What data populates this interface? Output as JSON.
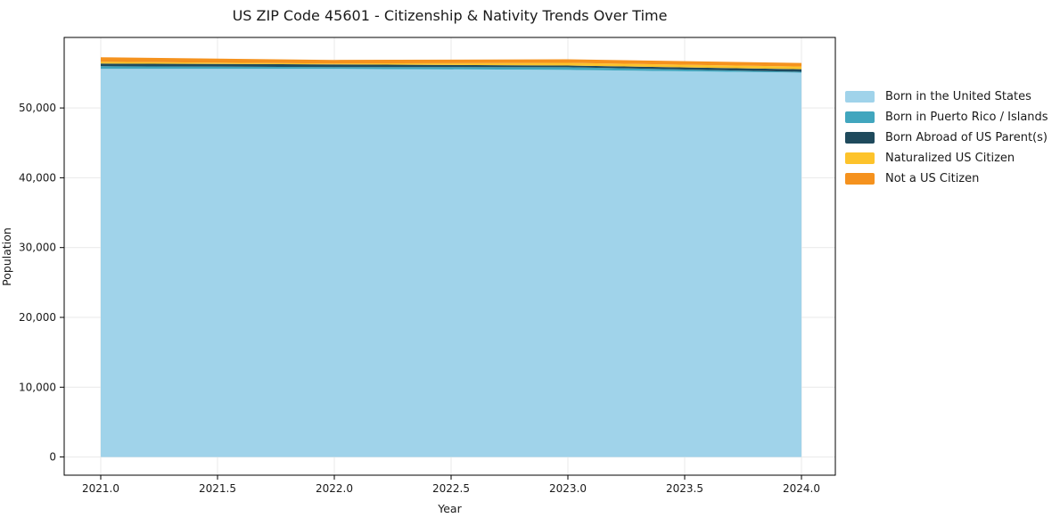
{
  "page": {
    "background": "#ffffff"
  },
  "chart_data": {
    "type": "area",
    "stacked": true,
    "title": "US ZIP Code 45601 - Citizenship & Nativity Trends Over Time",
    "xlabel": "Year",
    "ylabel": "Population",
    "x": [
      2021,
      2022,
      2023,
      2024
    ],
    "series": [
      {
        "name": "Born in the United States",
        "color": "#a0d3ea",
        "values": [
          55600,
          55600,
          55450,
          55050
        ]
      },
      {
        "name": "Born in Puerto Rico / Islands",
        "color": "#41a6be",
        "values": [
          380,
          260,
          380,
          130
        ]
      },
      {
        "name": "Born Abroad of US Parent(s)",
        "color": "#1f4a5c",
        "values": [
          380,
          380,
          250,
          380
        ]
      },
      {
        "name": "Naturalized US Citizen",
        "color": "#fdc32b",
        "values": [
          260,
          130,
          380,
          380
        ]
      },
      {
        "name": "Not a US Citizen",
        "color": "#f5921e",
        "values": [
          640,
          510,
          510,
          510
        ]
      }
    ],
    "xticks": [
      2021.0,
      2021.5,
      2022.0,
      2022.5,
      2023.0,
      2023.5,
      2024.0
    ],
    "xtick_labels": [
      "2021.0",
      "2021.5",
      "2022.0",
      "2022.5",
      "2023.0",
      "2023.5",
      "2024.0"
    ],
    "yticks": [
      0,
      10000,
      20000,
      30000,
      40000,
      50000
    ],
    "ytick_labels": [
      "0",
      "10,000",
      "20,000",
      "30,000",
      "40,000",
      "50,000"
    ],
    "xlim": [
      2020.8435,
      2024.145
    ],
    "ylim": [
      -2600,
      60100
    ],
    "grid": true,
    "grid_color": "#e9e9e9",
    "axis_color": "#000000",
    "text_color": "#1a1a1a",
    "tick_font_size": 12,
    "legend_position": "right",
    "legend_frame": false
  }
}
